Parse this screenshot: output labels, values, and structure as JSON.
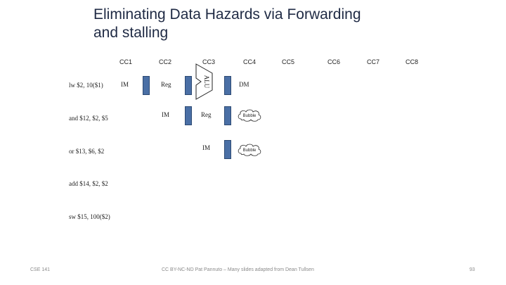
{
  "slide": {
    "title_line1": "Eliminating Data Hazards via Forwarding",
    "title_line2": "and stalling"
  },
  "clock_cycles": [
    "CC1",
    "CC2",
    "CC3",
    "CC4",
    "CC5",
    "CC6",
    "CC7",
    "CC8"
  ],
  "instructions": [
    "lw $2, 10($1)",
    "and $12, $2, $5",
    "or $13, $6, $2",
    "add $14, $2, $2",
    "sw $15, 100($2)"
  ],
  "stages": {
    "im": "IM",
    "reg": "Reg",
    "alu": "ALU",
    "dm": "DM",
    "bubble": "Bubble"
  },
  "colors": {
    "latch": "#4a6fa5",
    "title": "#1f2a44"
  },
  "footer": {
    "left": "CSE 141",
    "center": "CC BY-NC-ND Pat Pannuto – Many slides adapted from Dean Tullsen",
    "right": "93"
  }
}
